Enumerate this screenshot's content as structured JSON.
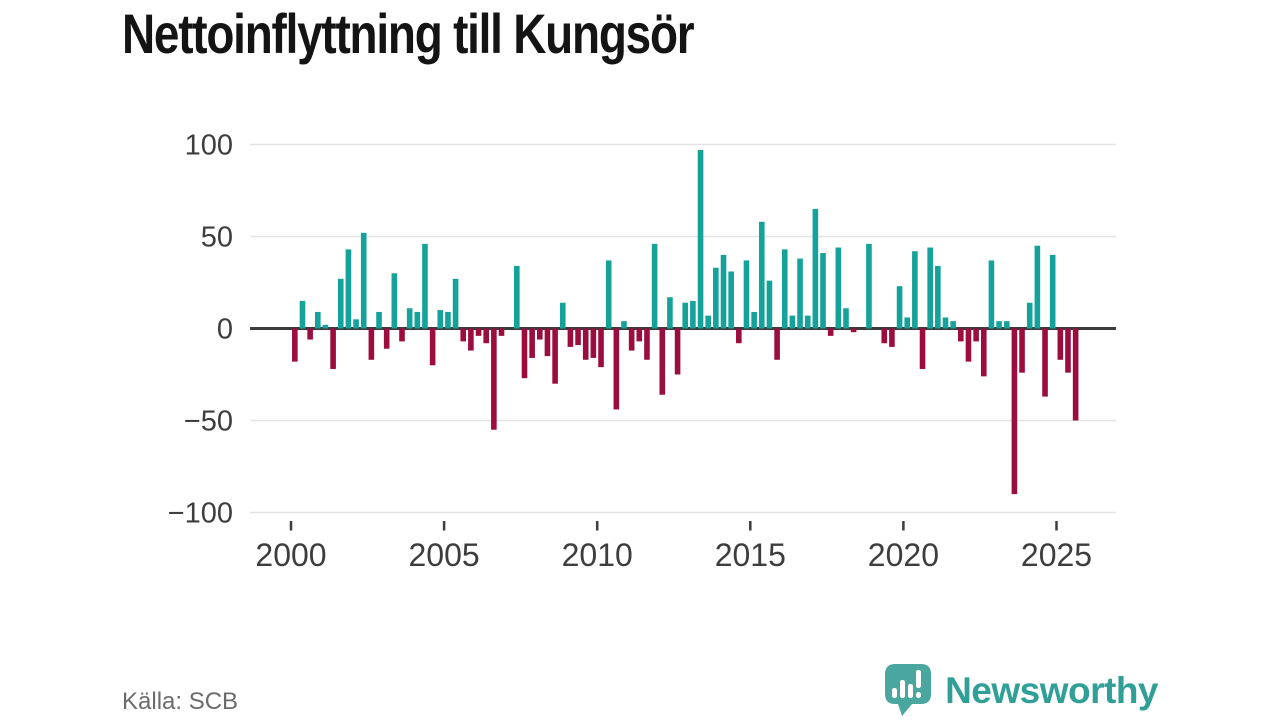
{
  "header": {
    "title": "Nettoinflyttning till Kungsör"
  },
  "footer": {
    "source": "Källa: SCB",
    "brand_name": "Newsworthy",
    "brand_icon_color": "#4aa79f",
    "brand_text_color": "#2f9f97"
  },
  "chart_data": {
    "type": "bar",
    "title": "Nettoinflyttning till Kungsör",
    "frequency": "quarterly",
    "start_year": 2000,
    "start_quarter": 1,
    "values": [
      -18,
      15,
      -6,
      9,
      2,
      -22,
      27,
      43,
      5,
      52,
      -17,
      9,
      -11,
      30,
      -7,
      11,
      9,
      46,
      -20,
      10,
      9,
      27,
      -7,
      -12,
      -4,
      -8,
      -55,
      -4,
      0,
      34,
      -27,
      -16,
      -6,
      -15,
      -30,
      14,
      -10,
      -9,
      -17,
      -16,
      -21,
      37,
      -44,
      4,
      -12,
      -7,
      -17,
      46,
      -36,
      17,
      -25,
      14,
      15,
      97,
      7,
      33,
      40,
      31,
      -8,
      37,
      9,
      58,
      26,
      -17,
      43,
      7,
      38,
      7,
      65,
      41,
      -4,
      44,
      11,
      -2,
      0,
      46,
      0,
      -8,
      -10,
      23,
      6,
      42,
      -22,
      44,
      34,
      6,
      4,
      -7,
      -18,
      -7,
      -26,
      37,
      4,
      4,
      -90,
      -24,
      14,
      45,
      -37,
      40,
      -17,
      -24,
      -50
    ],
    "ylim": [
      -100,
      100
    ],
    "y_ticks": [
      100,
      50,
      0,
      -50,
      -100
    ],
    "y_tick_labels": [
      "100",
      "50",
      "0",
      "−50",
      "−100"
    ],
    "x_ticks_years": [
      2000,
      2005,
      2010,
      2015,
      2020,
      2025
    ],
    "x_tick_labels": [
      "2000",
      "2005",
      "2010",
      "2015",
      "2020",
      "2025"
    ],
    "grid": "horizontal-only",
    "legend": "none",
    "positive_color": "#15a29a",
    "negative_color": "#9c0d3e",
    "zero_line_color": "#3b3b3b",
    "grid_color": "#e4e4e4",
    "axis_text_color": "#3d3d3d"
  }
}
